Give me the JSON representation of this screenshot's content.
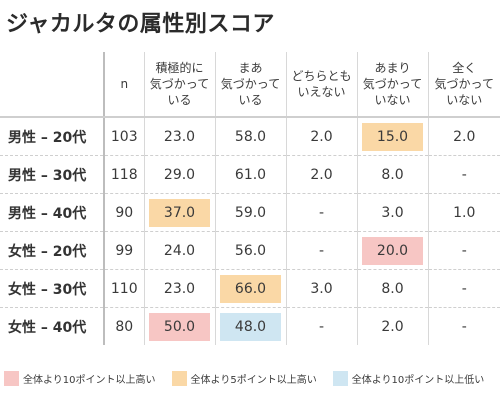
{
  "title": "ジャカルタの属性別スコア",
  "colors": {
    "plus10": "#f7c6c4",
    "plus5": "#fad8a6",
    "minus10": "#cfe6f2"
  },
  "columns": [
    "",
    "n",
    "積極的に\n気づかって\nいる",
    "まあ\n気づかって\nいる",
    "どちらとも\nいえない",
    "あまり\n気づかって\nいない",
    "全く\n気づかって\nいない"
  ],
  "rows": [
    {
      "label": "男性 – 20代",
      "n": "103",
      "values": [
        "23.0",
        "58.0",
        "2.0",
        "15.0",
        "2.0"
      ],
      "highlights": [
        "",
        "",
        "",
        "plus5",
        ""
      ]
    },
    {
      "label": "男性 – 30代",
      "n": "118",
      "values": [
        "29.0",
        "61.0",
        "2.0",
        "8.0",
        "-"
      ],
      "highlights": [
        "",
        "",
        "",
        "",
        ""
      ]
    },
    {
      "label": "男性 – 40代",
      "n": "90",
      "values": [
        "37.0",
        "59.0",
        "-",
        "3.0",
        "1.0"
      ],
      "highlights": [
        "plus5",
        "",
        "",
        "",
        ""
      ]
    },
    {
      "label": "女性 – 20代",
      "n": "99",
      "values": [
        "24.0",
        "56.0",
        "-",
        "20.0",
        "-"
      ],
      "highlights": [
        "",
        "",
        "",
        "plus10",
        ""
      ]
    },
    {
      "label": "女性 – 30代",
      "n": "110",
      "values": [
        "23.0",
        "66.0",
        "3.0",
        "8.0",
        "-"
      ],
      "highlights": [
        "",
        "plus5",
        "",
        "",
        ""
      ]
    },
    {
      "label": "女性 – 40代",
      "n": "80",
      "values": [
        "50.0",
        "48.0",
        "-",
        "2.0",
        "-"
      ],
      "highlights": [
        "plus10",
        "minus10",
        "",
        "",
        ""
      ]
    }
  ],
  "legend": [
    {
      "key": "plus10",
      "label": "全体より10ポイント以上高い"
    },
    {
      "key": "plus5",
      "label": "全体より5ポイント以上高い"
    },
    {
      "key": "minus10",
      "label": "全体より10ポイント以上低い"
    }
  ]
}
